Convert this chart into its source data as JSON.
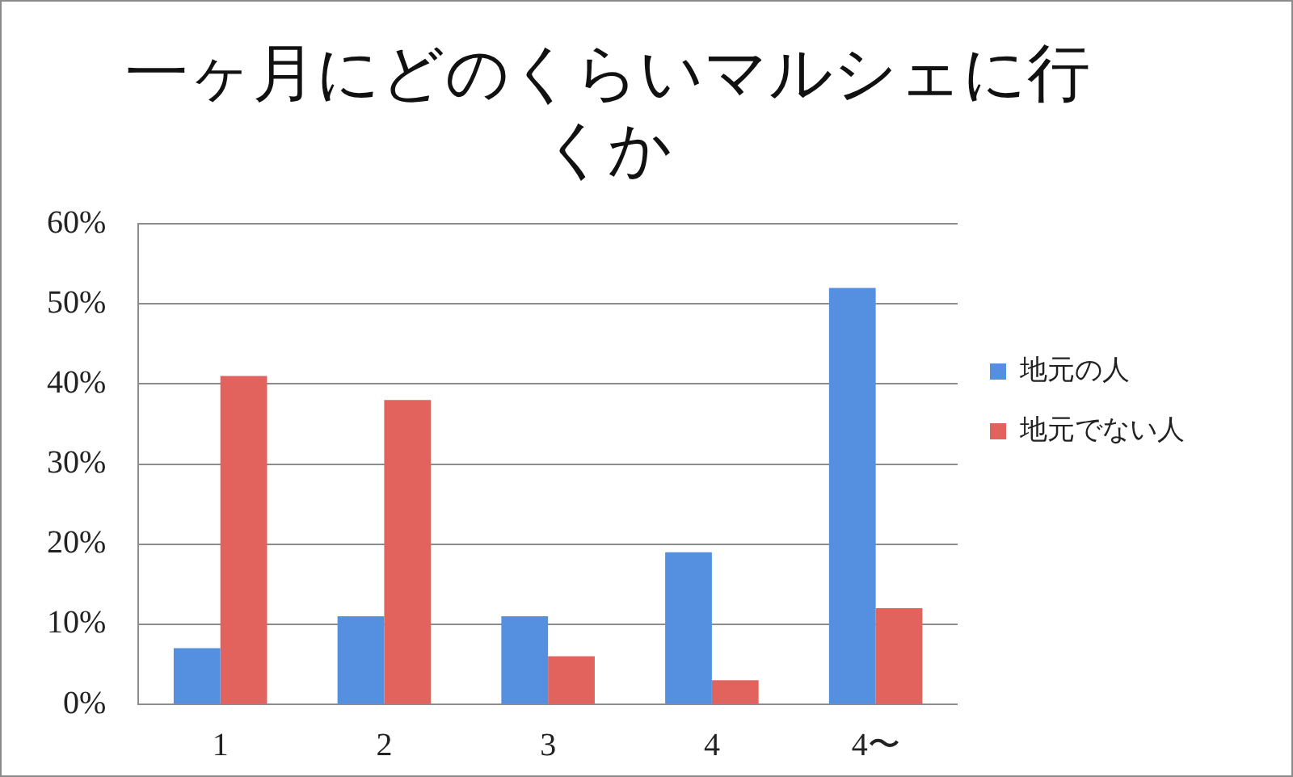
{
  "chart_data": {
    "type": "bar",
    "title": "一ヶ月にどのくらいマルシェに行くか",
    "categories": [
      "1",
      "2",
      "3",
      "4",
      "4〜"
    ],
    "series": [
      {
        "name": "地元の人",
        "color": "#5590e0",
        "values": [
          7,
          11,
          11,
          19,
          52
        ]
      },
      {
        "name": "地元でない人",
        "color": "#e2625d",
        "values": [
          41,
          38,
          6,
          3,
          12
        ]
      }
    ],
    "ylim": [
      0,
      60
    ],
    "yticks": [
      {
        "value": 0,
        "label": "0%"
      },
      {
        "value": 10,
        "label": "10%"
      },
      {
        "value": 20,
        "label": "20%"
      },
      {
        "value": 30,
        "label": "30%"
      },
      {
        "value": 40,
        "label": "40%"
      },
      {
        "value": 50,
        "label": "50%"
      },
      {
        "value": 60,
        "label": "60%"
      }
    ],
    "grid": "y",
    "legend": "right"
  }
}
